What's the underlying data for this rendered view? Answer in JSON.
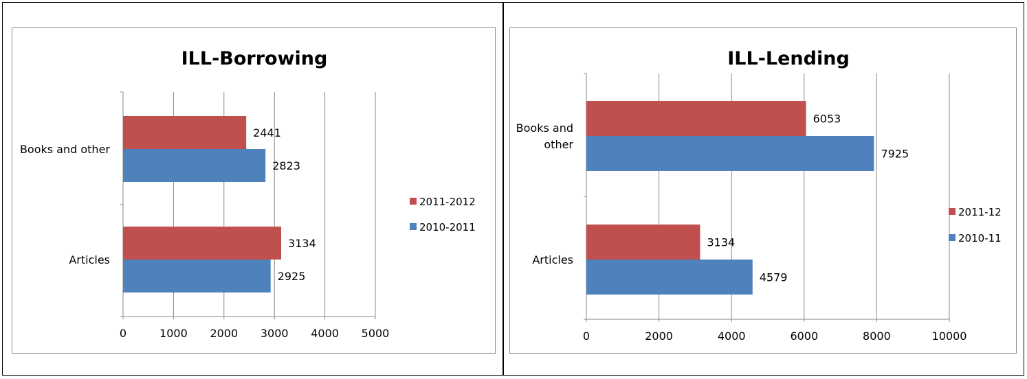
{
  "chart_data": [
    {
      "type": "bar",
      "orientation": "horizontal",
      "title": "ILL-Borrowing",
      "categories": [
        "Books and other",
        "Articles"
      ],
      "category_lines": [
        [
          "Books and other"
        ],
        [
          "Articles"
        ]
      ],
      "series": [
        {
          "name": "2011-2012",
          "color": "#c0504d",
          "values": [
            2441,
            3134
          ]
        },
        {
          "name": "2010-2011",
          "color": "#4f81bd",
          "values": [
            2823,
            2925
          ]
        }
      ],
      "xlim": [
        0,
        5000
      ],
      "xticks": [
        0,
        1000,
        2000,
        3000,
        4000,
        5000
      ],
      "xlabel": "",
      "ylabel": "",
      "grid": "vertical",
      "legend": "right"
    },
    {
      "type": "bar",
      "orientation": "horizontal",
      "title": "ILL-Lending",
      "categories": [
        "Books and other",
        "Articles"
      ],
      "category_lines": [
        [
          "Books and",
          "other"
        ],
        [
          "Articles"
        ]
      ],
      "series": [
        {
          "name": "2011-12",
          "color": "#c0504d",
          "values": [
            6053,
            3134
          ]
        },
        {
          "name": "2010-11",
          "color": "#4f81bd",
          "values": [
            7925,
            4579
          ]
        }
      ],
      "xlim": [
        0,
        10000
      ],
      "xticks": [
        0,
        2000,
        4000,
        6000,
        8000,
        10000
      ],
      "xlabel": "",
      "ylabel": "",
      "grid": "vertical",
      "legend": "right"
    }
  ]
}
